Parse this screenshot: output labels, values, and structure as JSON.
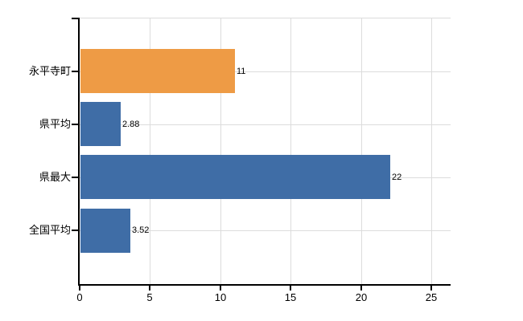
{
  "chart_data": {
    "type": "bar",
    "orientation": "horizontal",
    "title": "",
    "xlabel": "",
    "ylabel": "",
    "categories": [
      "永平寺町",
      "県平均",
      "県最大",
      "全国平均"
    ],
    "values": [
      11,
      2.88,
      22,
      3.52
    ],
    "value_labels": [
      "11",
      "2.88",
      "22",
      "3.52"
    ],
    "series_colors": [
      "#EE9B45",
      "#3F6DA6",
      "#3F6DA6",
      "#3F6DA6"
    ],
    "xlim": [
      0,
      25
    ],
    "x_ticks": [
      0,
      5,
      10,
      15,
      20,
      25
    ],
    "x_tick_labels": [
      "0",
      "5",
      "10",
      "15",
      "20",
      "25"
    ],
    "grid": true,
    "legend": false
  },
  "colors": {
    "background": "#ffffff",
    "axis": "#000000",
    "gridline": "#dcdcdc",
    "text": "#000000",
    "highlight_bar": "#EE9B45",
    "default_bar": "#3F6DA6"
  }
}
